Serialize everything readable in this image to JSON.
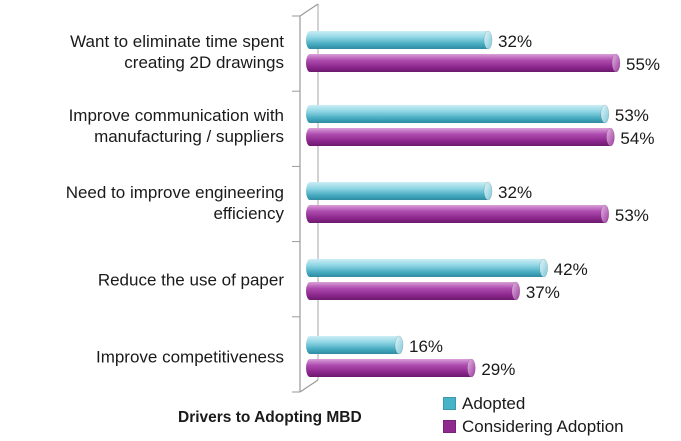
{
  "chart_data": {
    "type": "bar",
    "orientation": "horizontal",
    "caption": "Drivers to Adopting MBD",
    "categories": [
      [
        "Want to eliminate time spent",
        "creating 2D drawings"
      ],
      [
        "Improve communication with",
        "manufacturing / suppliers"
      ],
      [
        "Need to improve engineering",
        "efficiency"
      ],
      [
        "Reduce the use of paper"
      ],
      [
        "Improve competitiveness"
      ]
    ],
    "series": [
      {
        "name": "Adopted",
        "values": [
          32,
          53,
          32,
          42,
          16
        ],
        "labels": [
          "32%",
          "53%",
          "32%",
          "42%",
          "16%"
        ],
        "color": "#47b3c9"
      },
      {
        "name": "Considering Adoption",
        "values": [
          55,
          54,
          53,
          37,
          29
        ],
        "labels": [
          "55%",
          "54%",
          "53%",
          "37%",
          "29%"
        ],
        "color": "#8e2a8e"
      }
    ],
    "xlim": [
      0,
      55
    ],
    "value_suffix": "%",
    "grid": false,
    "legend_position": "bottom-right",
    "style": "3d-cylinder"
  }
}
